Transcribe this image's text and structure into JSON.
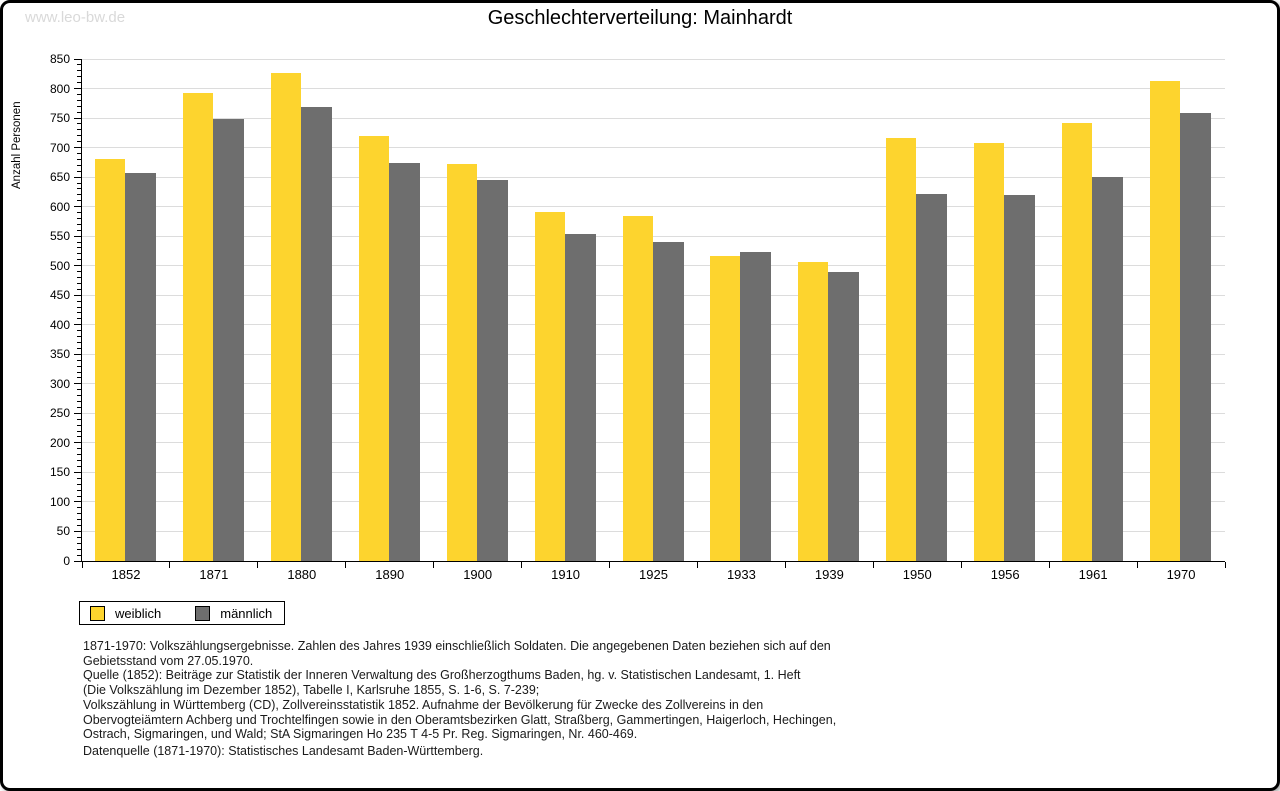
{
  "watermark": "www.leo-bw.de",
  "title": "Geschlechterverteilung: Mainhardt",
  "colors": {
    "female": "#fdd42e",
    "male": "#6e6e6e",
    "gridline": "#dcdcdc",
    "axis": "#000000",
    "watermark": "#d9d9d9"
  },
  "chart_data": {
    "type": "bar",
    "title": "Geschlechterverteilung: Mainhardt",
    "xlabel": "",
    "ylabel": "Anzahl Personen",
    "categories": [
      "1852",
      "1871",
      "1880",
      "1890",
      "1900",
      "1910",
      "1925",
      "1933",
      "1939",
      "1950",
      "1956",
      "1961",
      "1970"
    ],
    "series": [
      {
        "name": "weiblich",
        "color": "#fdd42e",
        "values": [
          680,
          793,
          826,
          719,
          673,
          591,
          585,
          516,
          507,
          717,
          707,
          741,
          812
        ]
      },
      {
        "name": "männlich",
        "color": "#6e6e6e",
        "values": [
          657,
          749,
          768,
          674,
          645,
          554,
          541,
          523,
          489,
          622,
          619,
          651,
          758
        ]
      }
    ],
    "ylim": [
      0,
      850
    ],
    "ytick_step": 50,
    "ytick_minor_step": 10,
    "grid": true,
    "legend_position": "bottom-left"
  },
  "legend": {
    "items": [
      {
        "label": "weiblich"
      },
      {
        "label": "männlich"
      }
    ]
  },
  "footer": {
    "lines": [
      "1871-1970: Volkszählungsergebnisse. Zahlen des Jahres 1939 einschließlich Soldaten. Die angegebenen Daten beziehen sich auf den",
      "Gebietsstand vom 27.05.1970.",
      "Quelle (1852): Beiträge zur Statistik der Inneren Verwaltung des Großherzogthums Baden, hg. v. Statistischen Landesamt, 1. Heft",
      "(Die Volkszählung im Dezember 1852), Tabelle I, Karlsruhe 1855, S. 1-6, S. 7-239;",
      "Volkszählung in Württemberg (CD), Zollvereinsstatistik 1852. Aufnahme der Bevölkerung für Zwecke des Zollvereins in den",
      "Obervogteiämtern Achberg und Trochtelfingen sowie in den Oberamtsbezirken Glatt, Straßberg, Gammertingen, Haigerloch, Hechingen,",
      "Ostrach, Sigmaringen, und Wald; StA Sigmaringen Ho 235 T 4-5 Pr. Reg. Sigmaringen, Nr. 460-469."
    ],
    "datasource": "Datenquelle (1871-1970): Statistisches Landesamt Baden-Württemberg."
  }
}
